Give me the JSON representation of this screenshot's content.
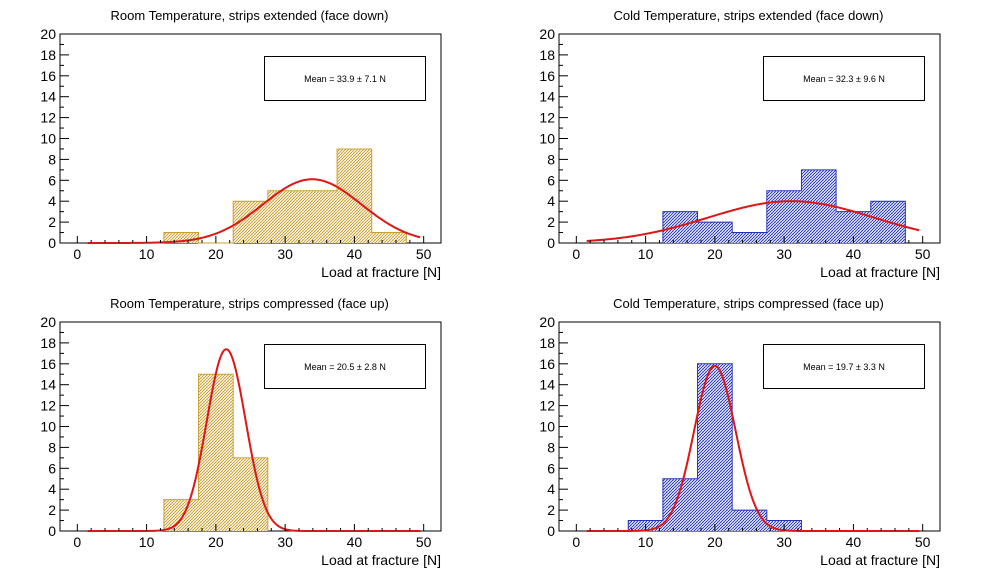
{
  "colors": {
    "warm": "#c8a030",
    "cold": "#2233bb",
    "fit": "#e01515"
  },
  "chart_data": [
    {
      "type": "histogram",
      "title": "Room Temperature, strips extended (face down)",
      "xlabel": "Load at fracture [N]",
      "ylabel": "",
      "xlim": [
        -2.5,
        52.5
      ],
      "ylim": [
        0,
        20
      ],
      "xticks": [
        0,
        10,
        20,
        30,
        40,
        50
      ],
      "yticks": [
        0,
        2,
        4,
        6,
        8,
        10,
        12,
        14,
        16,
        18,
        20
      ],
      "bin_edges": [
        12.5,
        17.5,
        22.5,
        27.5,
        32.5,
        37.5,
        42.5,
        47.5
      ],
      "counts": [
        1,
        0,
        4,
        5,
        5,
        9,
        1
      ],
      "fill": "warm",
      "fit": {
        "type": "gaussian",
        "mean": 33.9,
        "sigma": 7.1,
        "amplitude": 6.1,
        "range": [
          1.5,
          49.5
        ]
      },
      "legend_text": "Mean = 33.9 ± 7.1 N"
    },
    {
      "type": "histogram",
      "title": "Cold Temperature, strips extended (face down)",
      "xlabel": "Load at fracture [N]",
      "ylabel": "",
      "xlim": [
        -2.5,
        52.5
      ],
      "ylim": [
        0,
        20
      ],
      "xticks": [
        0,
        10,
        20,
        30,
        40,
        50
      ],
      "yticks": [
        0,
        2,
        4,
        6,
        8,
        10,
        12,
        14,
        16,
        18,
        20
      ],
      "bin_edges": [
        12.5,
        17.5,
        22.5,
        27.5,
        32.5,
        37.5,
        42.5,
        47.5
      ],
      "counts": [
        3,
        2,
        1,
        5,
        7,
        3,
        4
      ],
      "fill": "cold",
      "fit": {
        "type": "gaussian",
        "mean": 31.0,
        "sigma": 12.0,
        "amplitude": 4.0,
        "range": [
          1.5,
          49.5
        ]
      },
      "legend_text": "Mean = 32.3 ± 9.6 N"
    },
    {
      "type": "histogram",
      "title": "Room Temperature, strips compressed (face up)",
      "xlabel": "Load at fracture [N]",
      "ylabel": "",
      "xlim": [
        -2.5,
        52.5
      ],
      "ylim": [
        0,
        20
      ],
      "xticks": [
        0,
        10,
        20,
        30,
        40,
        50
      ],
      "yticks": [
        0,
        2,
        4,
        6,
        8,
        10,
        12,
        14,
        16,
        18,
        20
      ],
      "bin_edges": [
        12.5,
        17.5,
        22.5,
        27.5
      ],
      "counts": [
        3,
        15,
        7
      ],
      "fill": "warm",
      "fit": {
        "type": "gaussian",
        "mean": 21.5,
        "sigma": 2.8,
        "amplitude": 17.4,
        "range": [
          1.5,
          49.5
        ]
      },
      "legend_text": "Mean = 20.5 ± 2.8 N"
    },
    {
      "type": "histogram",
      "title": "Cold Temperature, strips compressed (face up)",
      "xlabel": "Load at fracture [N]",
      "ylabel": "",
      "xlim": [
        -2.5,
        52.5
      ],
      "ylim": [
        0,
        20
      ],
      "xticks": [
        0,
        10,
        20,
        30,
        40,
        50
      ],
      "yticks": [
        0,
        2,
        4,
        6,
        8,
        10,
        12,
        14,
        16,
        18,
        20
      ],
      "bin_edges": [
        7.5,
        12.5,
        17.5,
        22.5,
        27.5,
        32.5
      ],
      "counts": [
        1,
        5,
        16,
        2,
        1
      ],
      "fill": "cold",
      "fit": {
        "type": "gaussian",
        "mean": 20.0,
        "sigma": 3.0,
        "amplitude": 15.8,
        "range": [
          1.5,
          49.5
        ]
      },
      "legend_text": "Mean = 19.7 ± 3.3 N"
    }
  ]
}
